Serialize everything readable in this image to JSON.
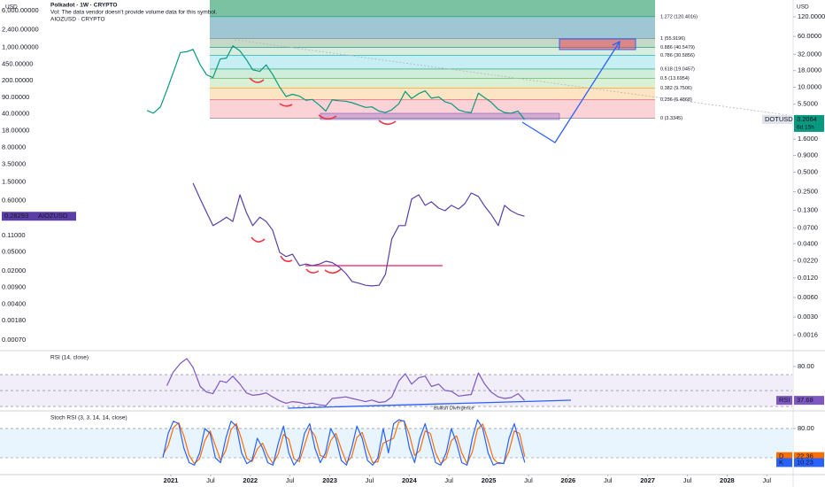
{
  "chart_data": [
    {
      "type": "line",
      "title": "Polkadot · 1W · CRYPTO",
      "subtitle": "Vol: The data vendor doesn't provide volume data for this symbol.",
      "overlay_title": "AIOZUSD · CRYPTO",
      "y_label": "USD",
      "y2_label": "USD",
      "log_scale": true,
      "countdown": "6d 15h",
      "xlim": [
        2018.85,
        2028.82
      ],
      "xticks": [
        2021,
        {
          "value": 2021.5,
          "label": "Jul"
        },
        2022,
        {
          "value": 2022.5,
          "label": "Jul"
        },
        2023,
        {
          "value": 2023.5,
          "label": "Jul"
        },
        2024,
        {
          "value": 2024.5,
          "label": "Jul"
        },
        2025,
        {
          "value": 2025.5,
          "label": "Jul"
        },
        2026,
        {
          "value": 2026.5,
          "label": "Jul"
        },
        2027,
        {
          "value": 2027.5,
          "label": "Jul"
        },
        2028,
        {
          "value": 2028.5,
          "label": "Jul"
        }
      ],
      "ylim": [
        0.00044,
        10000
      ],
      "yticks": [
        {
          "value": 6000,
          "label": "6,000.00000"
        },
        {
          "value": 2400,
          "label": "2,400.00000"
        },
        {
          "value": 1000,
          "label": "1,000.00000"
        },
        {
          "value": 450,
          "label": "450.00000"
        },
        {
          "value": 200,
          "label": "200.00000"
        },
        {
          "value": 90,
          "label": "90.00000"
        },
        {
          "value": 40,
          "label": "40.00000"
        },
        {
          "value": 18,
          "label": "18.00000"
        },
        {
          "value": 8,
          "label": "8.00000"
        },
        {
          "value": 3.5,
          "label": "3.50000"
        },
        {
          "value": 1.5,
          "label": "1.50000"
        },
        {
          "value": 0.6,
          "label": "0.60000"
        },
        {
          "value": 0.11,
          "label": "0.11000"
        },
        {
          "value": 0.05,
          "label": "0.05000"
        },
        {
          "value": 0.02,
          "label": "0.02000"
        },
        {
          "value": 0.009,
          "label": "0.00900"
        },
        {
          "value": 0.004,
          "label": "0.00400"
        },
        {
          "value": 0.0018,
          "label": "0.00180"
        },
        {
          "value": 0.0007,
          "label": "0.00070"
        }
      ],
      "y2lim": [
        0.00095,
        217
      ],
      "y2ticks": [
        {
          "value": 120,
          "label": "120.0000"
        },
        {
          "value": 60,
          "label": "60.0000"
        },
        {
          "value": 32,
          "label": "32.0000"
        },
        {
          "value": 18,
          "label": "18.0000"
        },
        {
          "value": 10,
          "label": "10.0000"
        },
        {
          "value": 5.5,
          "label": "5.5000"
        },
        {
          "value": 1.6,
          "label": "1.6000"
        },
        {
          "value": 0.9,
          "label": "0.9000"
        },
        {
          "value": 0.5,
          "label": "0.5000"
        },
        {
          "value": 0.25,
          "label": "0.2500"
        },
        {
          "value": 0.13,
          "label": "0.1300"
        },
        {
          "value": 0.07,
          "label": "0.0700"
        },
        {
          "value": 0.04,
          "label": "0.0400"
        },
        {
          "value": 0.022,
          "label": "0.0220"
        },
        {
          "value": 0.012,
          "label": "0.0120"
        },
        {
          "value": 0.006,
          "label": "0.0060"
        },
        {
          "value": 0.003,
          "label": "0.0030"
        },
        {
          "value": 0.0016,
          "label": "0.0016"
        }
      ],
      "fib_levels": [
        {
          "label": "1.272 (120.4016)",
          "value": 120.4016,
          "color": "#9fc7d3",
          "label_color": "#089981"
        },
        {
          "label": "1 (55.9196)",
          "value": 55.9196,
          "color": "#c5d9c8",
          "label_color": "#787b86"
        },
        {
          "label": "0.886 (40.5479)",
          "value": 40.5479,
          "color": "#d7eede",
          "label_color": "#089981"
        },
        {
          "label": "0.786 (30.5856)",
          "value": 30.5856,
          "color": "#c6eef3",
          "label_color": "#00a5bf"
        },
        {
          "label": "0.618 (19.0457)",
          "value": 19.0457,
          "color": "#d0edd9",
          "label_color": "#089981"
        },
        {
          "label": "0.5 (13.6954)",
          "value": 13.6954,
          "color": "#daf0d6",
          "label_color": "#4caf50"
        },
        {
          "label": "0.382 (9.7506)",
          "value": 9.7506,
          "color": "#fde4c2",
          "label_color": "#ff9800"
        },
        {
          "label": "0.236 (6.4868)",
          "value": 6.4868,
          "color": "#fbd2d6",
          "label_color": "#f23645"
        },
        {
          "label": "0 (3.3345)",
          "value": 3.3345,
          "color": "#c8cad1",
          "label_color": "#787b86"
        }
      ],
      "series": [
        {
          "name": "DOTUSD",
          "axis": "y2",
          "color": "#089981",
          "x": [
            2020.7,
            2020.78,
            2020.87,
            2020.95,
            2021.03,
            2021.12,
            2021.2,
            2021.28,
            2021.37,
            2021.45,
            2021.53,
            2021.62,
            2021.7,
            2021.78,
            2021.87,
            2021.95,
            2022.03,
            2022.12,
            2022.2,
            2022.28,
            2022.37,
            2022.45,
            2022.53,
            2022.62,
            2022.7,
            2022.78,
            2022.87,
            2022.95,
            2023.03,
            2023.12,
            2023.2,
            2023.28,
            2023.37,
            2023.45,
            2023.53,
            2023.62,
            2023.7,
            2023.78,
            2023.87,
            2023.95,
            2024.03,
            2024.12,
            2024.2,
            2024.28,
            2024.37,
            2024.45,
            2024.53,
            2024.62,
            2024.7,
            2024.78,
            2024.87,
            2024.95,
            2025.03,
            2025.12,
            2025.2,
            2025.28,
            2025.37,
            2025.45
          ],
          "values": [
            4.4,
            4.0,
            5.0,
            9.0,
            16.8,
            34,
            35,
            38,
            22,
            15.5,
            14,
            27,
            28,
            43,
            36,
            26.5,
            18.5,
            17.5,
            22,
            15.8,
            10,
            7.2,
            7.8,
            7.3,
            6.3,
            6.5,
            5.3,
            4.3,
            6.4,
            6.2,
            6.1,
            5.8,
            5.3,
            4.9,
            5.0,
            4.3,
            4.1,
            4.5,
            5.6,
            8.6,
            6.7,
            8.0,
            8.8,
            6.8,
            7.1,
            6.0,
            5.6,
            4.5,
            4.2,
            4.1,
            8.1,
            6.9,
            5.9,
            4.6,
            4.1,
            4.0,
            4.3,
            3.2064
          ]
        },
        {
          "name": "AIOZUSD",
          "color": "#5b3fa6",
          "x": [
            2021.28,
            2021.37,
            2021.45,
            2021.53,
            2021.62,
            2021.7,
            2021.78,
            2021.87,
            2021.95,
            2022.03,
            2022.12,
            2022.2,
            2022.28,
            2022.37,
            2022.45,
            2022.53,
            2022.62,
            2022.7,
            2022.78,
            2022.87,
            2022.95,
            2023.03,
            2023.12,
            2023.2,
            2023.28,
            2023.37,
            2023.45,
            2023.53,
            2023.62,
            2023.7,
            2023.78,
            2023.87,
            2023.95,
            2024.03,
            2024.12,
            2024.2,
            2024.28,
            2024.37,
            2024.45,
            2024.53,
            2024.62,
            2024.7,
            2024.78,
            2024.87,
            2024.95,
            2025.03,
            2025.12,
            2025.2,
            2025.28,
            2025.37,
            2025.45
          ],
          "values": [
            1.4,
            0.65,
            0.34,
            0.18,
            0.22,
            0.27,
            0.22,
            0.8,
            0.34,
            0.18,
            0.27,
            0.22,
            0.145,
            0.049,
            0.04,
            0.045,
            0.026,
            0.028,
            0.026,
            0.028,
            0.032,
            0.03,
            0.024,
            0.018,
            0.012,
            0.011,
            0.01,
            0.0097,
            0.01,
            0.017,
            0.094,
            0.18,
            0.18,
            0.65,
            0.8,
            0.48,
            0.57,
            0.42,
            0.37,
            0.48,
            0.4,
            0.52,
            0.87,
            0.74,
            0.46,
            0.31,
            0.18,
            0.48,
            0.37,
            0.31,
            0.28293
          ]
        }
      ]
    },
    {
      "type": "line",
      "title": "RSI (14, close)",
      "ylim": [
        25.6,
        98.9
      ],
      "yticks": [
        {
          "value": 80,
          "label": "80.00"
        }
      ],
      "levels": [
        70,
        50,
        30
      ],
      "band_color": "#7e57c2",
      "annotation": "Bullish Divergence",
      "series": [
        {
          "name": "RSI",
          "color": "#7e57c2",
          "x": [
            2020.95,
            2021.03,
            2021.12,
            2021.2,
            2021.28,
            2021.37,
            2021.45,
            2021.53,
            2021.62,
            2021.7,
            2021.78,
            2021.87,
            2021.95,
            2022.03,
            2022.12,
            2022.2,
            2022.28,
            2022.37,
            2022.45,
            2022.53,
            2022.62,
            2022.7,
            2022.78,
            2022.87,
            2022.95,
            2023.03,
            2023.12,
            2023.2,
            2023.28,
            2023.37,
            2023.45,
            2023.53,
            2023.62,
            2023.7,
            2023.78,
            2023.87,
            2023.95,
            2024.03,
            2024.12,
            2024.2,
            2024.28,
            2024.37,
            2024.45,
            2024.53,
            2024.62,
            2024.7,
            2024.78,
            2024.87,
            2024.95,
            2025.03,
            2025.12,
            2025.2,
            2025.28,
            2025.37,
            2025.45
          ],
          "values": [
            56,
            73,
            84,
            90,
            79,
            55,
            48,
            46,
            62,
            60,
            68,
            58,
            47,
            44,
            45,
            47,
            42,
            37,
            34,
            36,
            35,
            33,
            34,
            32,
            31,
            40,
            41,
            42,
            40,
            38,
            36,
            38,
            35,
            36,
            42,
            62,
            71,
            58,
            66,
            68,
            55,
            58,
            50,
            49,
            43,
            44,
            45,
            72,
            58,
            48,
            42,
            40,
            41,
            46,
            37.68
          ]
        }
      ]
    },
    {
      "type": "line",
      "title": "Stoch RSI (3, 3, 14, 14, close)",
      "ylim": [
        -12.7,
        114.5
      ],
      "yticks": [
        {
          "value": 80,
          "label": "80.00"
        }
      ],
      "levels": [
        80,
        20
      ],
      "band_color": "#2196f3",
      "x": [
        2020.9,
        2020.966,
        2021.032,
        2021.098,
        2021.164,
        2021.23,
        2021.296,
        2021.362,
        2021.428,
        2021.494,
        2021.56,
        2021.626,
        2021.692,
        2021.758,
        2021.824,
        2021.89,
        2021.956,
        2022.022,
        2022.088,
        2022.154,
        2022.22,
        2022.286,
        2022.352,
        2022.418,
        2022.484,
        2022.55,
        2022.616,
        2022.682,
        2022.748,
        2022.814,
        2022.88,
        2022.946,
        2023.012,
        2023.078,
        2023.144,
        2023.21,
        2023.276,
        2023.342,
        2023.408,
        2023.474,
        2023.54,
        2023.606,
        2023.672,
        2023.738,
        2023.804,
        2023.87,
        2023.936,
        2024.002,
        2024.068,
        2024.134,
        2024.2,
        2024.266,
        2024.332,
        2024.398,
        2024.464,
        2024.53,
        2024.596,
        2024.662,
        2024.728,
        2024.794,
        2024.86,
        2024.926,
        2024.992,
        2025.058,
        2025.124,
        2025.19,
        2025.256,
        2025.322,
        2025.388,
        2025.454
      ],
      "series": [
        {
          "name": "D",
          "color": "#ff6d00",
          "values": [
            25,
            45,
            82,
            92,
            65,
            25,
            8,
            18,
            55,
            75,
            45,
            15,
            35,
            78,
            90,
            58,
            19,
            12,
            38,
            50,
            25,
            8,
            28,
            68,
            58,
            18,
            12,
            45,
            80,
            65,
            25,
            20,
            55,
            70,
            38,
            10,
            22,
            62,
            72,
            38,
            10,
            12,
            50,
            55,
            60,
            94,
            96,
            68,
            25,
            35,
            75,
            70,
            30,
            8,
            18,
            55,
            65,
            30,
            8,
            32,
            79,
            89,
            55,
            18,
            8,
            9,
            34,
            75,
            70,
            22.36
          ]
        },
        {
          "name": "K",
          "color": "#2962ff",
          "values": [
            20,
            70,
            95,
            90,
            40,
            10,
            5,
            30,
            80,
            70,
            20,
            10,
            60,
            95,
            85,
            30,
            8,
            15,
            60,
            40,
            10,
            5,
            50,
            85,
            30,
            5,
            20,
            70,
            90,
            40,
            10,
            30,
            80,
            60,
            15,
            5,
            40,
            85,
            60,
            15,
            5,
            20,
            80,
            30,
            90,
            98,
            95,
            40,
            10,
            60,
            90,
            50,
            10,
            5,
            30,
            80,
            50,
            10,
            5,
            60,
            98,
            80,
            30,
            5,
            10,
            8,
            60,
            90,
            50,
            10.23
          ]
        }
      ]
    }
  ]
}
